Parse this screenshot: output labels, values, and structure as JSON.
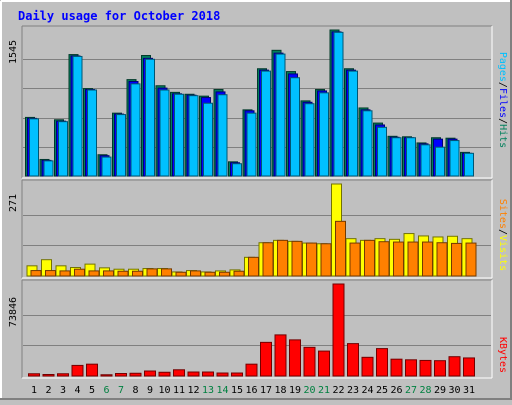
{
  "chart_data": {
    "title": "Daily usage for October 2018",
    "type": "bar",
    "colors": {
      "background": "#c0c0c0",
      "frame_light": "#ffffff",
      "frame_dark": "#808080",
      "gridline": "#808080",
      "title_text": "#0000ff",
      "tick_text": "#000000",
      "weekend_tick_text": "#008040",
      "hits": "#00805c",
      "files": "#0000ff",
      "pages": "#00c0ff",
      "visits": "#ffff00",
      "sites": "#ff8000",
      "kbytes": "#ff0000"
    },
    "days": [
      "1",
      "2",
      "3",
      "4",
      "5",
      "6",
      "7",
      "8",
      "9",
      "10",
      "11",
      "12",
      "13",
      "14",
      "15",
      "16",
      "17",
      "18",
      "19",
      "20",
      "21",
      "22",
      "23",
      "24",
      "25",
      "26",
      "27",
      "28",
      "29",
      "30",
      "31"
    ],
    "weekend_days": [
      "6",
      "7",
      "13",
      "14",
      "20",
      "21",
      "27",
      "28"
    ],
    "panels": [
      {
        "ymax_label": "1545",
        "ymax": 1545,
        "legend": [
          {
            "label": "Pages",
            "color": "#00c0ff"
          },
          {
            "label": "/",
            "color": "#000000"
          },
          {
            "label": "Files",
            "color": "#0000ff"
          },
          {
            "label": "/",
            "color": "#000000"
          },
          {
            "label": "Hits",
            "color": "#00805c"
          }
        ],
        "series": [
          {
            "name": "Hits",
            "color": "#00805c",
            "values": [
              620,
              175,
              595,
              1285,
              925,
              225,
              665,
              1020,
              1275,
              955,
              885,
              865,
              845,
              915,
              150,
              700,
              1135,
              1330,
              1105,
              795,
              915,
              1545,
              1135,
              720,
              560,
              420,
              415,
              350,
              405,
              400,
              250
            ]
          },
          {
            "name": "Files",
            "color": "#0000ff",
            "values": [
              610,
              165,
              580,
              1270,
              915,
              215,
              655,
              1000,
              1245,
              930,
              870,
              855,
              830,
              890,
              140,
              690,
              1120,
              1300,
              1080,
              780,
              900,
              1525,
              1120,
              700,
              540,
              410,
              405,
              340,
              390,
              390,
              240
            ]
          },
          {
            "name": "Pages",
            "color": "#00c0ff",
            "values": [
              605,
              160,
              575,
              1265,
              910,
              200,
              650,
              975,
              1235,
              910,
              865,
              850,
              770,
              860,
              130,
              665,
              1110,
              1290,
              1040,
              765,
              880,
              1520,
              1110,
              690,
              515,
              405,
              405,
              330,
              305,
              375,
              240
            ]
          }
        ]
      },
      {
        "ymax_label": "271",
        "ymax": 271,
        "legend": [
          {
            "label": "Sites",
            "color": "#ff8000"
          },
          {
            "label": "/",
            "color": "#000000"
          },
          {
            "label": "Visits",
            "color": "#ffff00"
          }
        ],
        "series": [
          {
            "name": "Visits",
            "color": "#ffff00",
            "values": [
              30,
              48,
              30,
              25,
              35,
              24,
              20,
              20,
              22,
              22,
              12,
              16,
              12,
              15,
              18,
              55,
              98,
              105,
              102,
              97,
              95,
              271,
              110,
              105,
              110,
              108,
              125,
              118,
              115,
              117,
              110
            ]
          },
          {
            "name": "Sites",
            "color": "#ff8000",
            "values": [
              16,
              16,
              15,
              20,
              15,
              15,
              14,
              14,
              21,
              21,
              11,
              15,
              11,
              11,
              14,
              55,
              98,
              105,
              102,
              97,
              95,
              161,
              97,
              105,
              101,
              100,
              100,
              100,
              98,
              96,
              97
            ]
          }
        ]
      },
      {
        "ymax_label": "73846",
        "ymax": 73846,
        "legend": [
          {
            "label": "KBytes",
            "color": "#ff0000"
          }
        ],
        "series": [
          {
            "name": "KBytes",
            "color": "#ff0000",
            "values": [
              1800,
              1200,
              1800,
              8500,
              9500,
              1000,
              2000,
              2200,
              4000,
              3000,
              5000,
              3200,
              3200,
              2400,
              2400,
              9500,
              27000,
              33000,
              29000,
              23000,
              20000,
              73846,
              26000,
              15000,
              22000,
              13500,
              13000,
              12500,
              12300,
              15500,
              14500
            ]
          }
        ]
      }
    ]
  }
}
